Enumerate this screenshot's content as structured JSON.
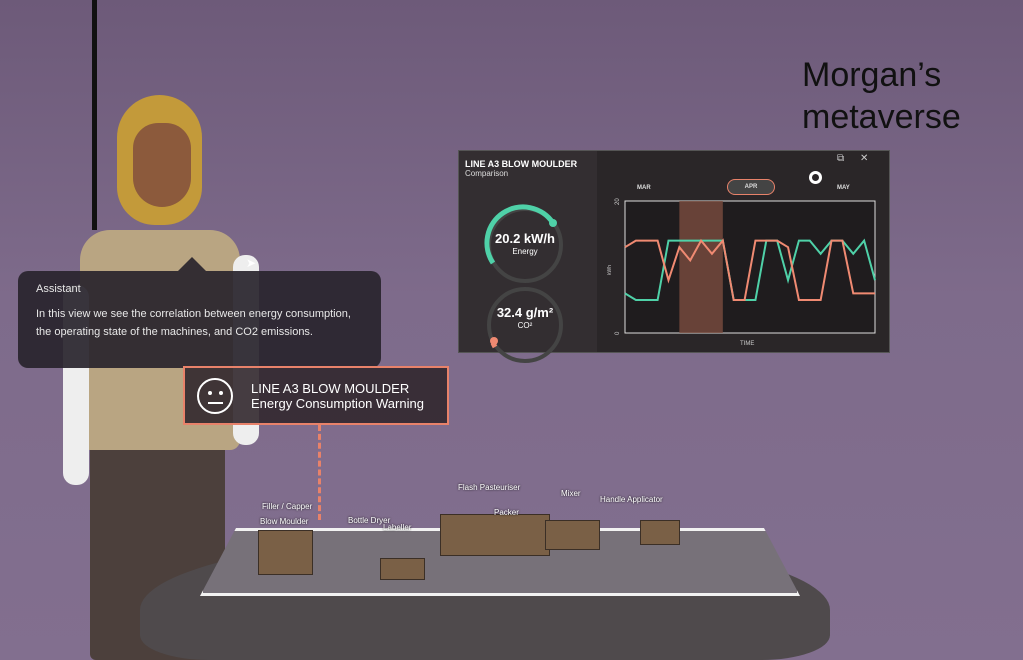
{
  "title": "Morgan’s metaverse",
  "assistant": {
    "name": "Assistant",
    "message": "In this view we see the correlation between energy consumption, the operating state of the machines, and CO2 emissions."
  },
  "warning": {
    "icon": "neutral-face-icon",
    "line1": "LINE A3 BLOW MOULDER",
    "line2": "Energy Consumption Warning",
    "color": "#e8826a"
  },
  "panel": {
    "title": "LINE A3 BLOW MOULDER",
    "subtitle": "Comparison",
    "energy": {
      "value": "20.2 kW/h",
      "label": "Energy",
      "color": "#4fd1a8"
    },
    "co2": {
      "value": "32.4 g/m²",
      "label": "CO²",
      "color": "#f08a72"
    },
    "tabs": [
      "MAR",
      "APR",
      "MAY"
    ],
    "active_tab": "APR",
    "controls": [
      "restore-icon",
      "close-icon"
    ]
  },
  "chart_data": {
    "type": "line",
    "ylabel": "kWh",
    "xlabel": "TIME",
    "ylim": [
      0,
      20
    ],
    "yticks": [
      "0",
      "20"
    ],
    "grid": false,
    "highlight_range": [
      5,
      9
    ],
    "x": [
      0,
      1,
      2,
      3,
      4,
      5,
      6,
      7,
      8,
      9,
      10,
      11,
      12,
      13,
      14,
      15,
      16,
      17,
      18,
      19,
      20,
      21,
      22,
      23
    ],
    "series": [
      {
        "color": "#4fd1a8",
        "values": [
          6,
          5,
          5,
          5,
          14,
          14,
          14,
          14,
          14,
          14,
          5,
          5,
          5,
          14,
          14,
          8,
          14,
          14,
          12,
          14,
          14,
          12,
          14,
          8
        ]
      },
      {
        "color": "#f08a72",
        "values": [
          13,
          14,
          14,
          14,
          8,
          13,
          11,
          14,
          12,
          14,
          5,
          5,
          14,
          14,
          14,
          13,
          5,
          5,
          5,
          14,
          14,
          6,
          6,
          6
        ]
      }
    ]
  },
  "scene": {
    "labels": [
      "Filler / Capper",
      "Blow Moulder",
      "Bottle Dryer",
      "Labeller",
      "Flash Pasteuriser",
      "Packer",
      "Mixer",
      "Handle Applicator"
    ]
  }
}
